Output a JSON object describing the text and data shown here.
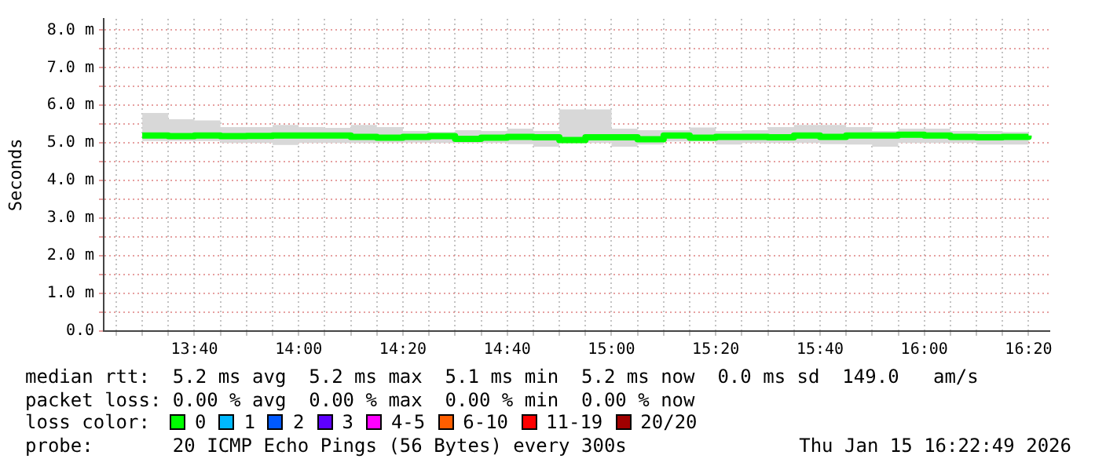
{
  "chart_data": {
    "type": "step",
    "ylabel": "Seconds",
    "grid": true,
    "legend": false,
    "xlim": [
      13.3767,
      16.4
    ],
    "ylim": [
      0,
      8.3
    ],
    "xticks": [
      {
        "value": 13.4167,
        "label": null
      },
      {
        "value": 13.5,
        "label": null
      },
      {
        "value": 13.5833,
        "label": null
      },
      {
        "value": 13.6667,
        "label": "13:40"
      },
      {
        "value": 13.75,
        "label": null
      },
      {
        "value": 13.8333,
        "label": null
      },
      {
        "value": 13.9167,
        "label": null
      },
      {
        "value": 14,
        "label": "14:00"
      },
      {
        "value": 14.0833,
        "label": null
      },
      {
        "value": 14.1667,
        "label": null
      },
      {
        "value": 14.25,
        "label": null
      },
      {
        "value": 14.3333,
        "label": "14:20"
      },
      {
        "value": 14.4167,
        "label": null
      },
      {
        "value": 14.5,
        "label": null
      },
      {
        "value": 14.5833,
        "label": null
      },
      {
        "value": 14.6667,
        "label": "14:40"
      },
      {
        "value": 14.75,
        "label": null
      },
      {
        "value": 14.8333,
        "label": null
      },
      {
        "value": 14.9167,
        "label": null
      },
      {
        "value": 15,
        "label": "15:00"
      },
      {
        "value": 15.0833,
        "label": null
      },
      {
        "value": 15.1667,
        "label": null
      },
      {
        "value": 15.25,
        "label": null
      },
      {
        "value": 15.3333,
        "label": "15:20"
      },
      {
        "value": 15.4167,
        "label": null
      },
      {
        "value": 15.5,
        "label": null
      },
      {
        "value": 15.5833,
        "label": null
      },
      {
        "value": 15.6667,
        "label": "15:40"
      },
      {
        "value": 15.75,
        "label": null
      },
      {
        "value": 15.8333,
        "label": null
      },
      {
        "value": 15.9167,
        "label": null
      },
      {
        "value": 16,
        "label": "16:00"
      },
      {
        "value": 16.0833,
        "label": null
      },
      {
        "value": 16.1667,
        "label": null
      },
      {
        "value": 16.25,
        "label": null
      },
      {
        "value": 16.3333,
        "label": "16:20"
      }
    ],
    "yticks": [
      {
        "value": 0,
        "label": "0.0"
      },
      {
        "value": 0.5,
        "label": null
      },
      {
        "value": 1,
        "label": "1.0 m"
      },
      {
        "value": 1.5,
        "label": null
      },
      {
        "value": 2,
        "label": "2.0 m"
      },
      {
        "value": 2.5,
        "label": null
      },
      {
        "value": 3,
        "label": "3.0 m"
      },
      {
        "value": 3.5,
        "label": null
      },
      {
        "value": 4,
        "label": "4.0 m"
      },
      {
        "value": 4.5,
        "label": null
      },
      {
        "value": 5,
        "label": "5.0 m"
      },
      {
        "value": 5.5,
        "label": null
      },
      {
        "value": 6,
        "label": "6.0 m"
      },
      {
        "value": 6.5,
        "label": null
      },
      {
        "value": 7,
        "label": "7.0 m"
      },
      {
        "value": 7.5,
        "label": null
      },
      {
        "value": 8,
        "label": "8.0 m"
      }
    ],
    "x": [
      13.5,
      13.5833,
      13.6667,
      13.75,
      13.8333,
      13.9167,
      14,
      14.0833,
      14.1667,
      14.25,
      14.3333,
      14.4167,
      14.5,
      14.5833,
      14.6667,
      14.75,
      14.8333,
      14.9167,
      15,
      15.0833,
      15.1667,
      15.25,
      15.3333,
      15.4167,
      15.5,
      15.5833,
      15.6667,
      15.75,
      15.8333,
      15.9167,
      16,
      16.0833,
      16.1667,
      16.25,
      16.3333
    ],
    "series": [
      {
        "type": "step",
        "color": "#00ff00",
        "values": [
          5.2,
          5.18,
          5.2,
          5.18,
          5.19,
          5.2,
          5.2,
          5.2,
          5.16,
          5.14,
          5.16,
          5.18,
          5.11,
          5.14,
          5.16,
          5.15,
          5.08,
          5.15,
          5.15,
          5.1,
          5.2,
          5.14,
          5.16,
          5.16,
          5.15,
          5.2,
          5.16,
          5.2,
          5.2,
          5.22,
          5.2,
          5.16,
          5.15,
          5.16,
          5.2
        ],
        "lower": [
          5.05,
          5.05,
          5.05,
          5.0,
          5.0,
          4.95,
          5.0,
          5.0,
          5.0,
          5.01,
          5.01,
          5.0,
          5.0,
          5.0,
          4.97,
          4.9,
          5.0,
          5.0,
          4.9,
          4.96,
          5.04,
          5.04,
          4.96,
          5.0,
          5.0,
          5.0,
          4.97,
          4.96,
          4.9,
          5.0,
          5.0,
          5.0,
          4.96,
          4.96,
          5.0
        ],
        "upper": [
          5.8,
          5.63,
          5.6,
          5.42,
          5.42,
          5.48,
          5.42,
          5.4,
          5.48,
          5.42,
          5.32,
          5.29,
          5.34,
          5.32,
          5.38,
          5.32,
          5.89,
          5.89,
          5.38,
          5.34,
          5.34,
          5.41,
          5.32,
          5.34,
          5.42,
          5.48,
          5.48,
          5.42,
          5.32,
          5.38,
          5.38,
          5.32,
          5.32,
          5.29,
          5.38
        ]
      }
    ],
    "annotations": [
      "median rtt:  5.2 ms avg  5.2 ms max  5.1 ms min  5.2 ms now  0.0 ms sd  149.0   am/s",
      "packet loss: 0.00 % avg  0.00 % max  0.00 % min  0.00 % now",
      "loss color:",
      "0",
      "1",
      "2",
      "3",
      "4-5",
      "6-10",
      "11-19",
      "20/20",
      "probe:       20 ICMP Echo Pings (56 Bytes) every 300s",
      "Thu Jan 15 16:22:49 2026"
    ]
  }
}
